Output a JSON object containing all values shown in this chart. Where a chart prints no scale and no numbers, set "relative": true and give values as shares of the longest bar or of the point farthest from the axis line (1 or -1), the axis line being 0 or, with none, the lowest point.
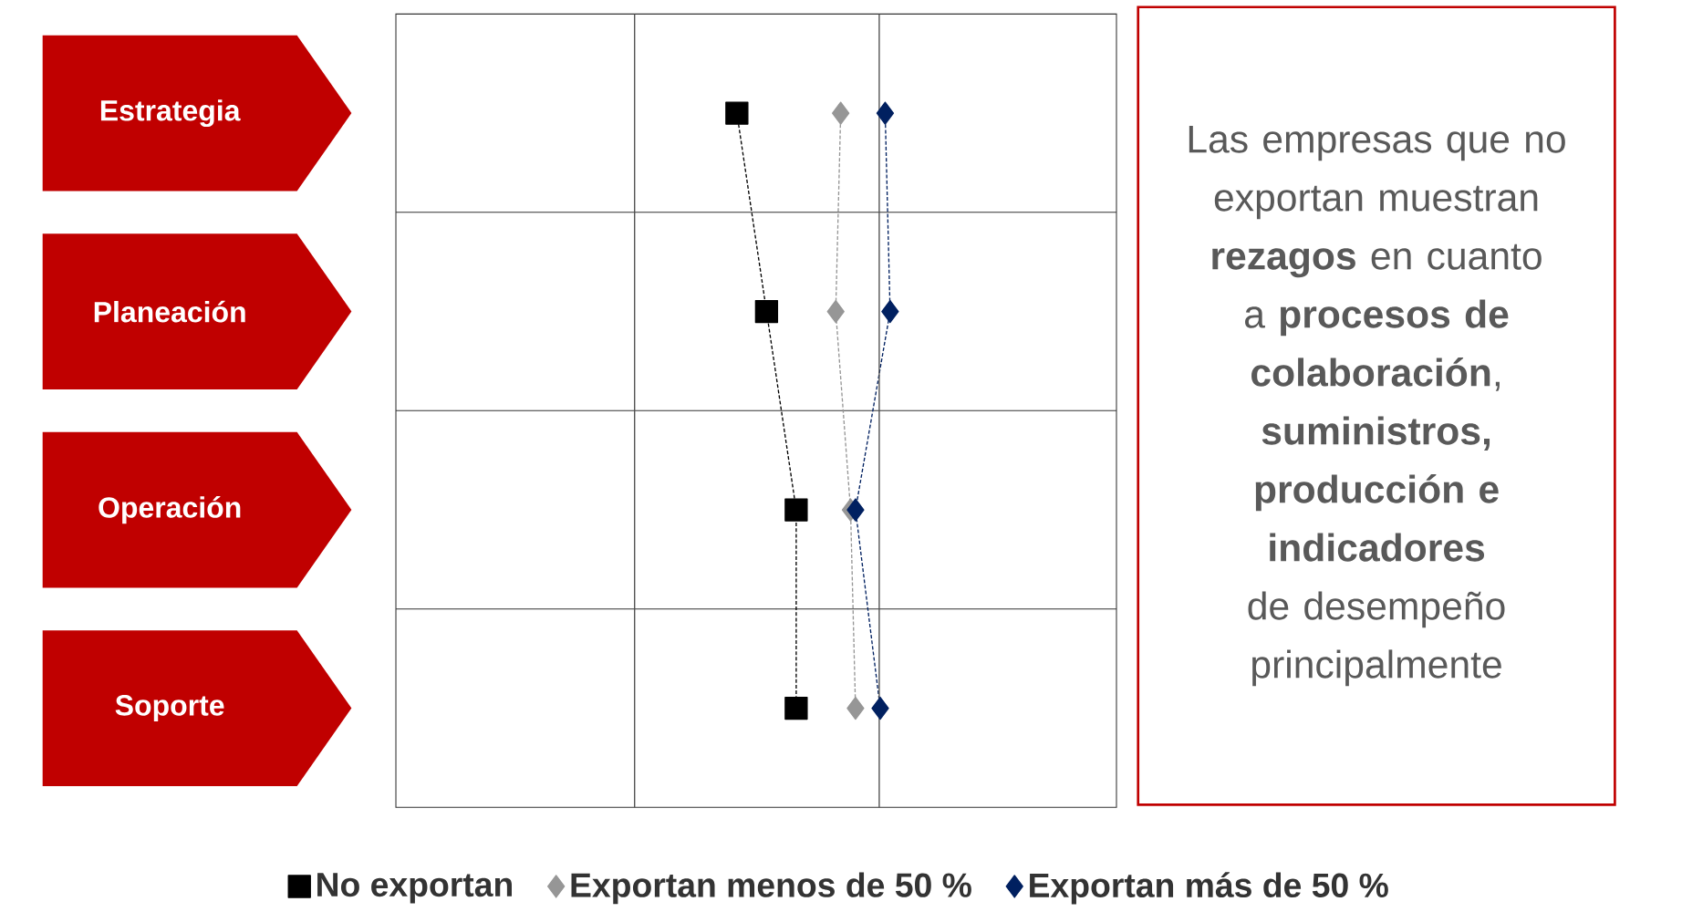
{
  "chart_data": {
    "type": "line",
    "orientation": "horizontal",
    "relative": true,
    "categories": [
      "Estrategia",
      "Planeación",
      "Operación",
      "Soporte"
    ],
    "series": [
      {
        "name": "No exportan",
        "color": "#000000",
        "marker": "square",
        "values": [
          0.69,
          0.75,
          0.81,
          0.81
        ]
      },
      {
        "name": "Exportan menos de 50 %",
        "color": "#969696",
        "marker": "diamond",
        "values": [
          0.9,
          0.89,
          0.92,
          0.93
        ]
      },
      {
        "name": "Exportan más de 50 %",
        "color": "#002060",
        "marker": "diamond",
        "values": [
          0.99,
          1.0,
          0.93,
          0.98
        ]
      }
    ],
    "ref_lines": [
      {
        "axis": "x",
        "value": 0.483,
        "color": "#4c4c4c"
      },
      {
        "axis": "x",
        "value": 0.978,
        "color": "#4c4c4c"
      }
    ],
    "line_style": "dashed",
    "grid": true,
    "legend": "bottom",
    "annotations": [
      "Las empresas que no exportan muestran **rezagos** en cuanto a **procesos de colaboración**, **suministros, producción e indicadores** de desempeño principalmente"
    ]
  }
}
